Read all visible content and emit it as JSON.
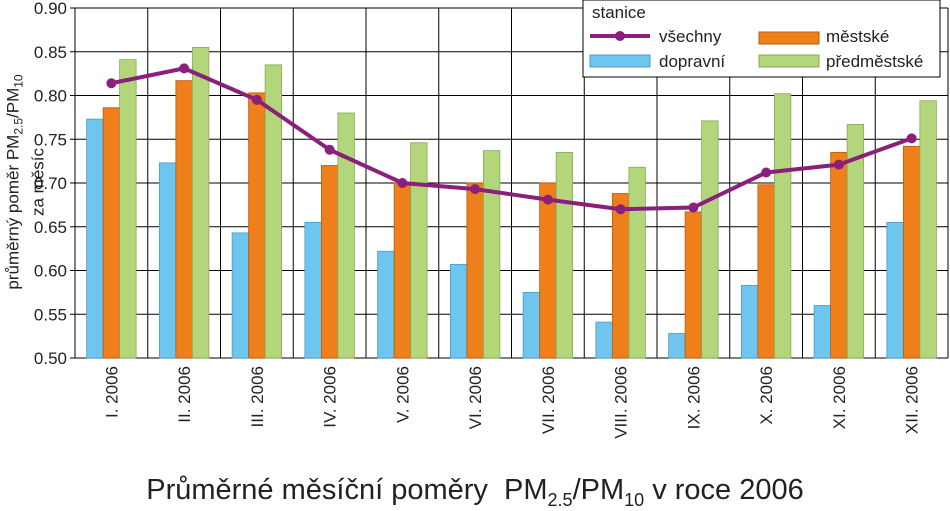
{
  "chart_data": {
    "type": "bar",
    "title_parts": {
      "main": "Průměrné měsíční poměry",
      "pm1": "PM",
      "pm1_sub": "2.5",
      "slash": "/PM",
      "pm2_sub": "10",
      "rest": " v roce 2006"
    },
    "ylabel_parts": {
      "line1_a": "průměrný poměr PM",
      "line1_sub1": "2.5",
      "line1_b": "/PM",
      "line1_sub2": "10",
      "line2": "za měsíc"
    },
    "categories": [
      "I. 2006",
      "II. 2006",
      "III. 2006",
      "IV. 2006",
      "V. 2006",
      "VI. 2006",
      "VII. 2006",
      "VIII. 2006",
      "IX. 2006",
      "X. 2006",
      "XI. 2006",
      "XII. 2006"
    ],
    "ylim": [
      0.5,
      0.9
    ],
    "yticks": [
      "0.50",
      "0.55",
      "0.60",
      "0.65",
      "0.70",
      "0.75",
      "0.80",
      "0.85",
      "0.90"
    ],
    "grid": true,
    "legend_title": "stanice",
    "legend_position": "top-right",
    "series": [
      {
        "name": "dopravní",
        "kind": "bar",
        "color": "#6ec6ef",
        "values": [
          0.773,
          0.723,
          0.643,
          0.655,
          0.622,
          0.607,
          0.575,
          0.541,
          0.528,
          0.583,
          0.56,
          0.655
        ]
      },
      {
        "name": "městské",
        "kind": "bar",
        "color": "#ef7f1a",
        "values": [
          0.786,
          0.817,
          0.803,
          0.72,
          0.7,
          0.7,
          0.7,
          0.688,
          0.667,
          0.698,
          0.735,
          0.742
        ]
      },
      {
        "name": "předměstské",
        "kind": "bar",
        "color": "#b3d67b",
        "values": [
          0.841,
          0.855,
          0.835,
          0.78,
          0.746,
          0.737,
          0.735,
          0.718,
          0.771,
          0.802,
          0.767,
          0.794
        ]
      },
      {
        "name": "všechny",
        "kind": "line",
        "color": "#8b1f7c",
        "values": [
          0.814,
          0.831,
          0.795,
          0.738,
          0.7,
          0.693,
          0.681,
          0.67,
          0.672,
          0.712,
          0.721,
          0.751
        ]
      }
    ]
  }
}
